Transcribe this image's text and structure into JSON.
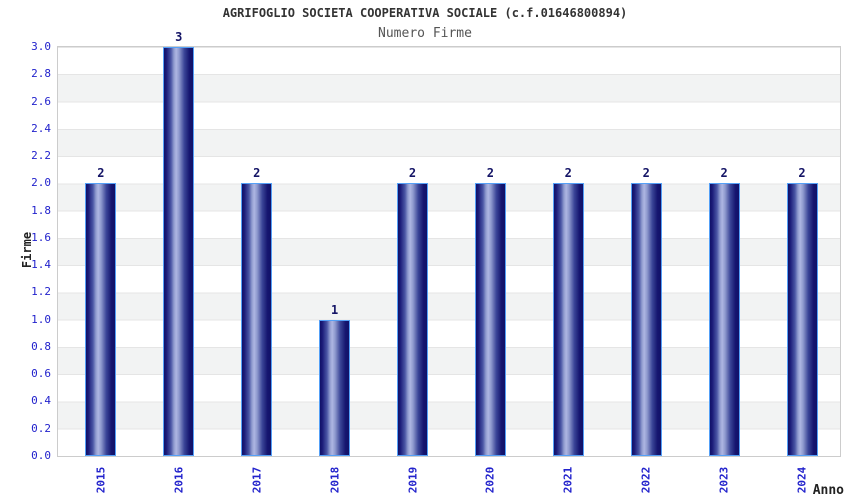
{
  "chart_data": {
    "type": "bar",
    "title": "AGRIFOGLIO SOCIETA COOPERATIVA SOCIALE (c.f.01646800894)",
    "subtitle": "Numero Firme",
    "xlabel": "Anno",
    "ylabel": "Firme",
    "categories": [
      "2015",
      "2016",
      "2017",
      "2018",
      "2019",
      "2020",
      "2021",
      "2022",
      "2023",
      "2024"
    ],
    "values": [
      2,
      3,
      2,
      1,
      2,
      2,
      2,
      2,
      2,
      2
    ],
    "bar_value_labels": [
      "2",
      "3",
      "2",
      "1",
      "2",
      "2",
      "2",
      "2",
      "2",
      "2"
    ],
    "ylim": [
      0.0,
      3.0
    ],
    "ytick_step": 0.2,
    "ytick_labels": [
      "0.0",
      "0.2",
      "0.4",
      "0.6",
      "0.8",
      "1.0",
      "1.2",
      "1.4",
      "1.6",
      "1.8",
      "2.0",
      "2.2",
      "2.4",
      "2.6",
      "2.8",
      "3.0"
    ],
    "grid": "horizontal-bands",
    "legend_position": "none",
    "colors": {
      "title_text": "#333333",
      "subtitle_text": "#555555",
      "axis_title_text": "#222222",
      "tick_text": "#2222cc",
      "bar_value_text": "#141466",
      "bar_edge": "#54a0f7",
      "bar_dark": "#111168",
      "bar_highlight": "#aeb6e2",
      "band_white": "#ffffff",
      "band_gray": "#f2f3f3",
      "gridline": "#e5e5e5",
      "plot_border": "#cccccc"
    }
  }
}
